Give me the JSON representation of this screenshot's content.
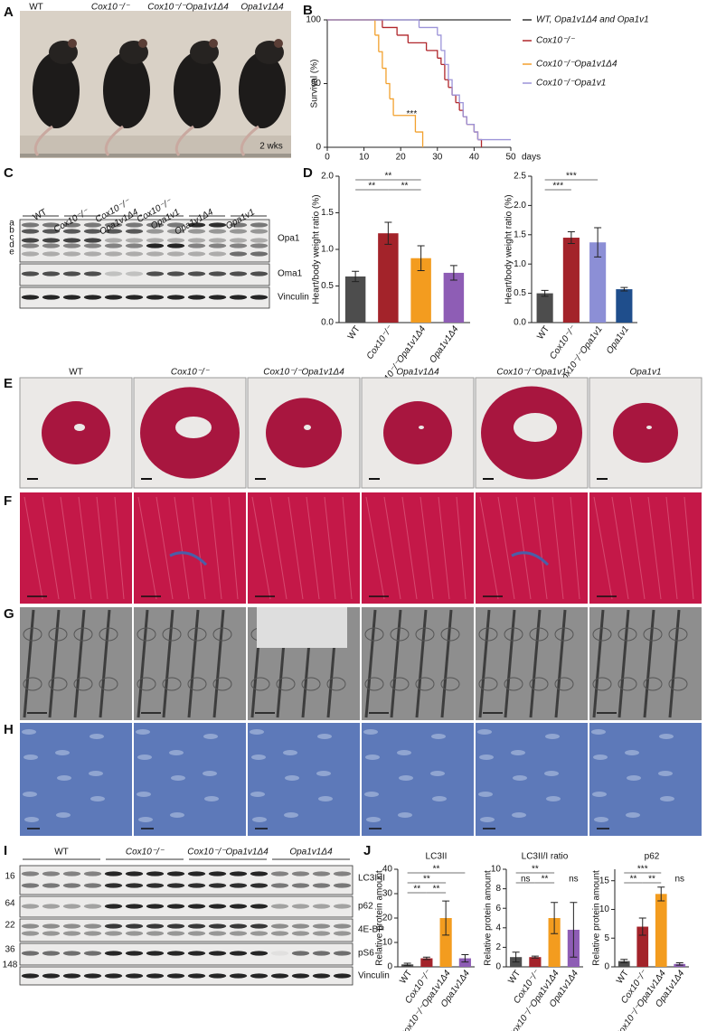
{
  "panel_labels": [
    "A",
    "B",
    "C",
    "D",
    "E",
    "F",
    "G",
    "H",
    "I",
    "J"
  ],
  "photo": {
    "groups": [
      "WT",
      "Cox10⁻/⁻",
      "Cox10⁻/⁻Opa1v1Δ4",
      "Opa1v1Δ4"
    ],
    "age": "2 wks"
  },
  "blot_c": {
    "lanes": [
      [
        "WT"
      ],
      [
        "Cox10⁻/⁻"
      ],
      [
        "Cox10⁻/⁻",
        "Opa1v1Δ4"
      ],
      [
        "Cox10⁻/⁻",
        "Opa1v1"
      ],
      [
        "Opa1v1Δ4"
      ],
      [
        "Opa1v1"
      ]
    ],
    "isoforms": [
      "a",
      "b",
      "c",
      "d",
      "e"
    ],
    "proteins": [
      "Opa1",
      "Oma1",
      "Vinculin"
    ]
  },
  "histology": {
    "columns": [
      "WT",
      "Cox10⁻/⁻",
      "Cox10⁻/⁻Opa1v1Δ4",
      "Opa1v1Δ4",
      "Cox10⁻/⁻Opa1v1",
      "Opa1v1"
    ]
  },
  "blot_i": {
    "groups": [
      "WT",
      "Cox10⁻/⁻",
      "Cox10⁻/⁻Opa1v1Δ4",
      "Opa1v1Δ4"
    ],
    "markers": [
      "16",
      "64",
      "22",
      "36",
      "148"
    ],
    "proteins": [
      "LC3I-II",
      "p62",
      "4E-BP",
      "pS6",
      "Vinculin"
    ]
  },
  "chart_data": [
    {
      "type": "line",
      "xlabel": "days",
      "ylabel": "Survival (%)",
      "xlim": [
        0,
        50
      ],
      "xticks": [
        0,
        10,
        20,
        30,
        40,
        50
      ],
      "ylim": [
        0,
        100
      ],
      "yticks": [
        0,
        50,
        100
      ],
      "annotation": "***",
      "series": [
        {
          "name": "WT, Opa1v1Δ4 and Opa1v1",
          "color": "#333333",
          "x": [
            0,
            50
          ],
          "values": [
            100,
            100
          ]
        },
        {
          "name": "Cox10⁻/⁻",
          "color": "#b0262b",
          "x": [
            0,
            15,
            19,
            22,
            27,
            30,
            31,
            32,
            33,
            34,
            35,
            36,
            37,
            38,
            40,
            41,
            42
          ],
          "values": [
            100,
            94,
            88,
            82,
            76,
            70,
            65,
            53,
            47,
            41,
            35,
            29,
            24,
            18,
            12,
            6,
            0
          ]
        },
        {
          "name": "Cox10⁻/⁻Opa1v1Δ4",
          "color": "#f2a12e",
          "x": [
            0,
            13,
            14,
            15,
            16,
            17,
            18,
            24,
            26
          ],
          "values": [
            100,
            88,
            75,
            62,
            50,
            38,
            25,
            12,
            0
          ]
        },
        {
          "name": "Cox10⁻/⁻Opa1v1",
          "color": "#9c93d8",
          "x": [
            0,
            25,
            30,
            31,
            32,
            33,
            34,
            36,
            37,
            38,
            40,
            41,
            50
          ],
          "values": [
            100,
            94,
            88,
            76,
            65,
            53,
            41,
            35,
            24,
            18,
            12,
            6,
            6
          ]
        }
      ]
    },
    {
      "type": "bar",
      "ylabel": "Heart/body weight ratio (%)",
      "categories": [
        "WT",
        "Cox10⁻/⁻",
        "Cox10⁻/⁻Opa1v1Δ4",
        "Opa1v1Δ4"
      ],
      "values": [
        0.63,
        1.22,
        0.88,
        0.68
      ],
      "errors": [
        0.07,
        0.15,
        0.17,
        0.1
      ],
      "colors": [
        "#4d4d4d",
        "#a3232a",
        "#f39c1f",
        "#8e5db5"
      ],
      "ylim": [
        0,
        2
      ],
      "yticks": [
        {
          "value": 0,
          "label": "0.0"
        },
        0.5,
        {
          "value": 1,
          "label": "1.0"
        },
        1.5,
        {
          "value": 2,
          "label": "2.0"
        }
      ],
      "comparisons": [
        {
          "label": "**",
          "between": [
            0,
            1
          ]
        },
        {
          "label": "**",
          "between": [
            1,
            2
          ]
        },
        {
          "label": "**",
          "between": [
            0,
            2
          ]
        }
      ]
    },
    {
      "type": "bar",
      "ylabel": "Heart/body weight ratio (%)",
      "categories": [
        "WT",
        "Cox10⁻/⁻",
        "Cox10⁻/⁻Opa1v1",
        "Opa1v1"
      ],
      "values": [
        0.5,
        1.45,
        1.37,
        0.57
      ],
      "errors": [
        0.05,
        0.1,
        0.25,
        0.03
      ],
      "colors": [
        "#4d4d4d",
        "#a3232a",
        "#8c8fd6",
        "#1f4e8c"
      ],
      "ylim": [
        0,
        2.5
      ],
      "yticks": [
        {
          "value": 0,
          "label": "0.0"
        },
        0.5,
        {
          "value": 1,
          "label": "1.0"
        },
        1.5,
        {
          "value": 2,
          "label": "2.0"
        },
        2.5
      ],
      "comparisons": [
        {
          "label": "***",
          "between": [
            0,
            1
          ]
        },
        {
          "label": "***",
          "between": [
            0,
            2
          ]
        }
      ]
    },
    {
      "type": "bar",
      "title": "LC3II",
      "ylabel": "Relative protein amount",
      "categories": [
        "WT",
        "Cox10⁻/⁻",
        "Cox10⁻/⁻Opa1v1Δ4",
        "Opa1v1Δ4"
      ],
      "values": [
        1,
        3.5,
        20,
        3.5
      ],
      "errors": [
        0.5,
        0.5,
        7,
        1.5
      ],
      "colors": [
        "#4d4d4d",
        "#a3232a",
        "#f39c1f",
        "#8e5db5"
      ],
      "ylim": [
        0,
        40
      ],
      "yticks": [
        0,
        10,
        20,
        30,
        40
      ],
      "comparisons": [
        {
          "label": "**",
          "between": [
            0,
            1
          ]
        },
        {
          "label": "**",
          "between": [
            1,
            2
          ]
        },
        {
          "label": "**",
          "between": [
            0,
            2
          ]
        },
        {
          "label": "**",
          "between": [
            0,
            3
          ]
        }
      ]
    },
    {
      "type": "bar",
      "title": "LC3II/I ratio",
      "ylabel": "Relative protein amount",
      "categories": [
        "WT",
        "Cox10⁻/⁻",
        "Cox10⁻/⁻Opa1v1Δ4",
        "Opa1v1Δ4"
      ],
      "values": [
        1,
        1,
        5,
        3.8
      ],
      "errors": [
        0.5,
        0.1,
        1.6,
        2.8
      ],
      "colors": [
        "#4d4d4d",
        "#a3232a",
        "#f39c1f",
        "#8e5db5"
      ],
      "ylim": [
        0,
        10
      ],
      "yticks": [
        0,
        2,
        4,
        6,
        8,
        10
      ],
      "comparisons": [
        {
          "label": "ns",
          "between": [
            0,
            1
          ]
        },
        {
          "label": "**",
          "between": [
            1,
            2
          ]
        },
        {
          "label": "ns",
          "between": [
            3,
            3
          ]
        },
        {
          "label": "**",
          "between": [
            0,
            2
          ]
        }
      ]
    },
    {
      "type": "bar",
      "title": "p62",
      "ylabel": "Relative protein amount",
      "categories": [
        "WT",
        "Cox10⁻/⁻",
        "Cox10⁻/⁻Opa1v1Δ4",
        "Opa1v1Δ4"
      ],
      "values": [
        1,
        7,
        12.7,
        0.5
      ],
      "errors": [
        0.3,
        1.5,
        1.2,
        0.2
      ],
      "colors": [
        "#4d4d4d",
        "#a3232a",
        "#f39c1f",
        "#8e5db5"
      ],
      "ylim": [
        0,
        17
      ],
      "yticks": [
        0,
        5,
        10,
        15
      ],
      "comparisons": [
        {
          "label": "**",
          "between": [
            0,
            1
          ]
        },
        {
          "label": "**",
          "between": [
            1,
            2
          ]
        },
        {
          "label": "ns",
          "between": [
            3,
            3
          ]
        },
        {
          "label": "***",
          "between": [
            0,
            2
          ]
        }
      ]
    }
  ]
}
